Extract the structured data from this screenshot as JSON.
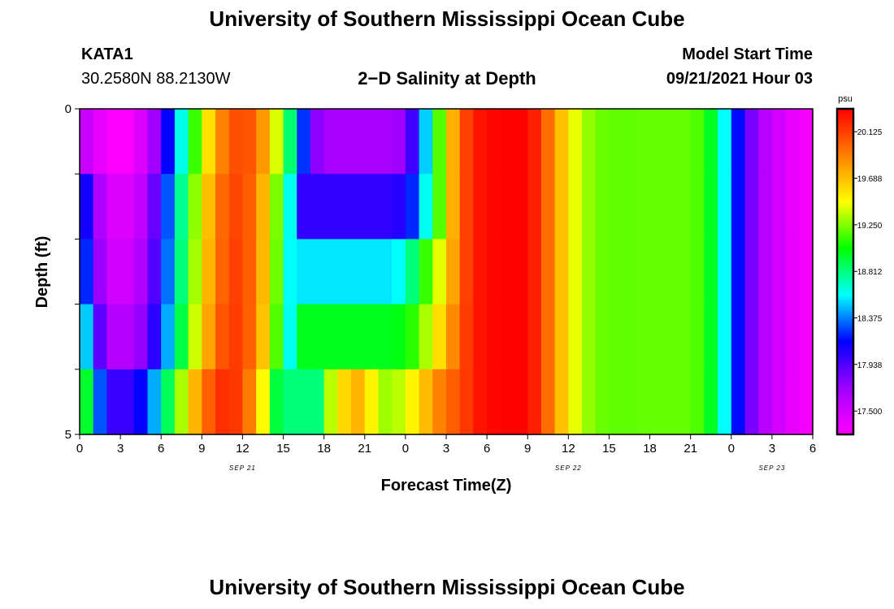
{
  "header": {
    "title": "University of Southern Mississippi Ocean Cube",
    "station_id": "KATA1",
    "coords": "30.2580N  88.2130W",
    "chart_title": "2−D Salinity at Depth",
    "model_start_label": "Model Start Time",
    "model_start_value": "09/21/2021 Hour 03"
  },
  "footer": {
    "title": "University of Southern Mississippi Ocean Cube"
  },
  "chart_data": {
    "type": "heatmap",
    "title": "2−D Salinity at Depth",
    "xlabel": "Forecast Time(Z)",
    "ylabel": "Depth (ft)",
    "x_unit": "forecast hour",
    "x_range": [
      0,
      54
    ],
    "y_range": [
      0,
      5
    ],
    "y_ticks": [
      "0",
      "5"
    ],
    "x_ticks": [
      "0",
      "3",
      "6",
      "9",
      "12",
      "15",
      "18",
      "21",
      "0",
      "3",
      "6",
      "9",
      "12",
      "15",
      "18",
      "21",
      "0",
      "3",
      "6"
    ],
    "date_labels": [
      {
        "label": "SEP 21",
        "hour": 12
      },
      {
        "label": "SEP 22",
        "hour": 36
      },
      {
        "label": "SEP 23",
        "hour": 51
      }
    ],
    "colorbar": {
      "unit": "psu",
      "min": 17.28,
      "max": 20.34,
      "ticks": [
        "20.125",
        "19.688",
        "19.250",
        "18.812",
        "18.375",
        "17.938",
        "17.500"
      ],
      "colors": [
        "#ff00ff",
        "#a000ff",
        "#0000ff",
        "#00ffff",
        "#00ff00",
        "#ffff00",
        "#ff8000",
        "#ff0000"
      ]
    },
    "layers": [
      {
        "depth_top": 0,
        "depth_bottom": 1,
        "values": [
          17.53,
          17.39,
          17.3,
          17.3,
          17.43,
          17.72,
          18.15,
          18.63,
          19.13,
          19.57,
          19.9,
          20.07,
          20.05,
          19.82,
          19.4,
          18.84,
          18.24,
          17.77,
          17.67,
          17.67,
          17.67,
          17.67,
          17.67,
          17.72,
          17.98,
          18.51,
          19.17,
          19.74,
          20.12,
          20.28,
          20.32,
          20.33,
          20.33,
          20.23,
          19.97,
          19.68,
          19.43,
          19.28,
          19.21,
          19.19,
          19.19,
          19.2,
          19.2,
          19.2,
          19.2,
          19.16,
          18.97,
          18.6,
          18.17,
          17.82,
          17.61,
          17.48,
          17.39,
          17.33
        ]
      },
      {
        "depth_top": 1,
        "depth_bottom": 2,
        "values": [
          18.1,
          17.65,
          17.43,
          17.43,
          17.57,
          17.87,
          18.3,
          18.78,
          19.27,
          19.69,
          19.98,
          20.1,
          20.02,
          19.72,
          19.24,
          18.62,
          18.02,
          18.02,
          18.02,
          18.02,
          18.02,
          18.02,
          18.02,
          18.05,
          18.22,
          18.62,
          19.17,
          19.74,
          20.12,
          20.28,
          20.32,
          20.33,
          20.33,
          20.23,
          19.97,
          19.68,
          19.43,
          19.28,
          19.21,
          19.19,
          19.19,
          19.2,
          19.2,
          19.2,
          19.2,
          19.16,
          18.97,
          18.6,
          18.17,
          17.82,
          17.61,
          17.48,
          17.39,
          17.33
        ]
      },
      {
        "depth_top": 2,
        "depth_bottom": 3,
        "values": [
          18.22,
          17.73,
          17.5,
          17.5,
          17.64,
          17.93,
          18.35,
          18.82,
          19.31,
          19.72,
          20,
          20.12,
          20.02,
          19.71,
          19.22,
          18.6,
          18.55,
          18.55,
          18.55,
          18.55,
          18.55,
          18.55,
          18.55,
          18.6,
          18.82,
          19.12,
          19.42,
          19.78,
          20.12,
          20.28,
          20.32,
          20.33,
          20.33,
          20.23,
          19.97,
          19.68,
          19.43,
          19.28,
          19.21,
          19.19,
          19.19,
          19.2,
          19.2,
          19.2,
          19.2,
          19.16,
          18.97,
          18.6,
          18.17,
          17.82,
          17.61,
          17.48,
          17.39,
          17.33
        ]
      },
      {
        "depth_top": 3,
        "depth_bottom": 4,
        "values": [
          18.5,
          17.9,
          17.62,
          17.62,
          17.75,
          18.04,
          18.45,
          18.91,
          19.38,
          19.78,
          20.05,
          20.14,
          20.01,
          19.67,
          19.17,
          18.62,
          18.98,
          18.98,
          18.98,
          18.98,
          18.98,
          18.98,
          18.98,
          19.0,
          19.1,
          19.32,
          19.58,
          19.87,
          20.14,
          20.28,
          20.32,
          20.33,
          20.33,
          20.23,
          19.97,
          19.68,
          19.43,
          19.28,
          19.21,
          19.19,
          19.19,
          19.2,
          19.2,
          19.2,
          19.2,
          19.16,
          18.97,
          18.6,
          18.17,
          17.82,
          17.61,
          17.48,
          17.39,
          17.33
        ]
      },
      {
        "depth_top": 4,
        "depth_bottom": 5,
        "values": [
          18.95,
          18.3,
          18.0,
          18.0,
          18.15,
          18.45,
          18.88,
          19.32,
          19.72,
          20.02,
          20.18,
          20.15,
          19.92,
          19.48,
          18.92,
          18.82,
          18.82,
          18.82,
          19.35,
          19.6,
          19.72,
          19.5,
          19.3,
          19.35,
          19.5,
          19.7,
          19.9,
          20.02,
          20.15,
          20.28,
          20.32,
          20.33,
          20.33,
          20.23,
          19.97,
          19.68,
          19.43,
          19.28,
          19.21,
          19.19,
          19.19,
          19.2,
          19.2,
          19.2,
          19.2,
          19.16,
          18.97,
          18.6,
          18.17,
          17.82,
          17.61,
          17.48,
          17.39,
          17.33
        ]
      }
    ],
    "grid": false
  }
}
